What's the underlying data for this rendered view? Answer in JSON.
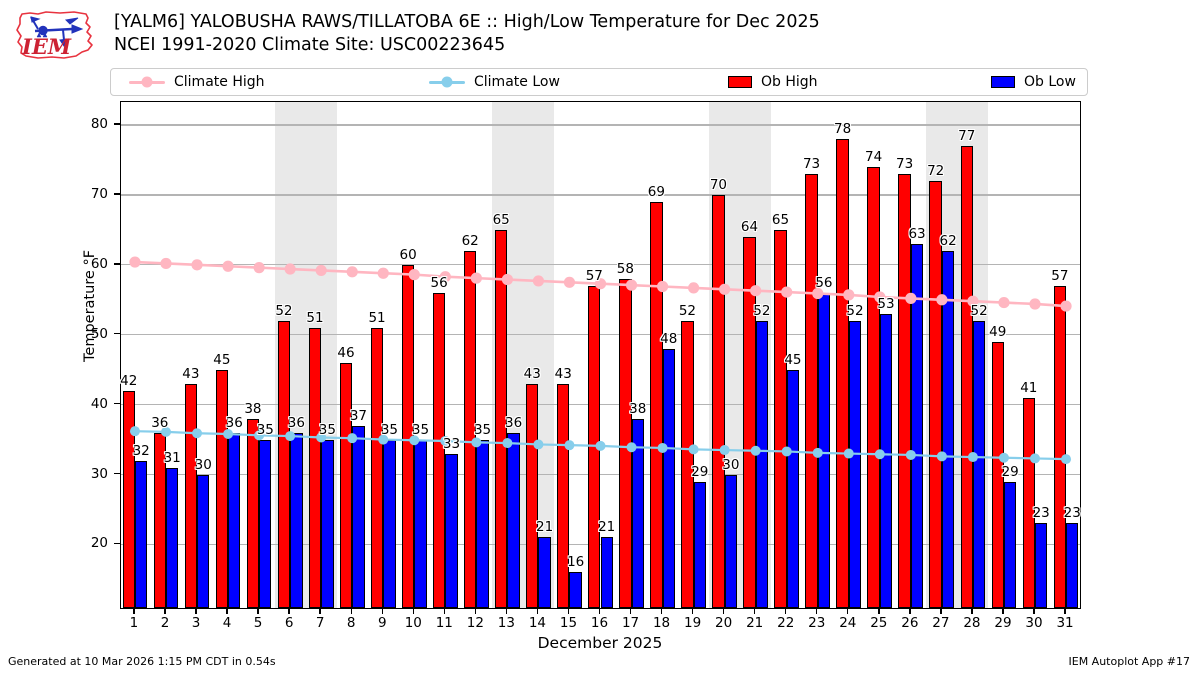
{
  "header": {
    "title_line1": "[YALM6] YALOBUSHA RAWS/TILLATOBA 6E :: High/Low Temperature for Dec 2025",
    "title_line2": "NCEI 1991-2020 Climate Site: USC00223645",
    "logo_text": "IEM"
  },
  "legend": {
    "items": [
      {
        "label": "Climate High",
        "marker": "line-dot",
        "color": "#ffb6c1"
      },
      {
        "label": "Climate Low",
        "marker": "line-dot",
        "color": "#87ceeb"
      },
      {
        "label": "Ob High",
        "marker": "rect",
        "color": "#ff0000"
      },
      {
        "label": "Ob Low",
        "marker": "rect",
        "color": "#0000ff"
      }
    ]
  },
  "chart_data": {
    "type": "bar",
    "title": "[YALM6] YALOBUSHA RAWS/TILLATOBA 6E :: High/Low Temperature for Dec 2025",
    "subtitle": "NCEI 1991-2020 Climate Site: USC00223645",
    "xlabel": "December 2025",
    "ylabel": "Temperature °F",
    "x": [
      1,
      2,
      3,
      4,
      5,
      6,
      7,
      8,
      9,
      10,
      11,
      12,
      13,
      14,
      15,
      16,
      17,
      18,
      19,
      20,
      21,
      22,
      23,
      24,
      25,
      26,
      27,
      28,
      29,
      30,
      31
    ],
    "series": [
      {
        "name": "Ob High",
        "type": "bar",
        "color": "#ff0000",
        "values": [
          42,
          36,
          43,
          45,
          38,
          52,
          51,
          46,
          51,
          60,
          56,
          62,
          65,
          43,
          43,
          57,
          58,
          69,
          52,
          70,
          64,
          65,
          73,
          78,
          74,
          73,
          72,
          77,
          49,
          41,
          57
        ]
      },
      {
        "name": "Ob Low",
        "type": "bar",
        "color": "#0000ff",
        "values": [
          32,
          31,
          30,
          36,
          35,
          36,
          35,
          37,
          35,
          35,
          33,
          35,
          36,
          21,
          16,
          21,
          38,
          48,
          29,
          30,
          52,
          45,
          56,
          52,
          53,
          63,
          62,
          52,
          29,
          23,
          23
        ]
      },
      {
        "name": "Climate High",
        "type": "line",
        "color": "#ffb6c1",
        "values": [
          60.4,
          60.2,
          60.0,
          59.8,
          59.6,
          59.4,
          59.2,
          59.0,
          58.8,
          58.6,
          58.3,
          58.1,
          57.9,
          57.7,
          57.5,
          57.3,
          57.1,
          56.9,
          56.7,
          56.5,
          56.3,
          56.1,
          55.9,
          55.7,
          55.4,
          55.2,
          55.0,
          54.8,
          54.6,
          54.4,
          54.1
        ]
      },
      {
        "name": "Climate Low",
        "type": "line",
        "color": "#87ceeb",
        "values": [
          36.2,
          36.1,
          35.9,
          35.8,
          35.6,
          35.5,
          35.3,
          35.2,
          35.0,
          34.9,
          34.8,
          34.6,
          34.5,
          34.3,
          34.2,
          34.1,
          33.9,
          33.8,
          33.6,
          33.5,
          33.4,
          33.3,
          33.1,
          33.0,
          32.9,
          32.8,
          32.6,
          32.5,
          32.4,
          32.3,
          32.2
        ]
      }
    ],
    "ylim": [
      10.9,
      83.3
    ],
    "xlim": [
      0.55,
      31.45
    ],
    "yticks": [
      20,
      30,
      40,
      50,
      60,
      70,
      80
    ],
    "grid": true,
    "weekend_bands": [
      [
        5.5,
        7.5
      ],
      [
        12.5,
        14.5
      ],
      [
        19.5,
        21.5
      ],
      [
        26.5,
        28.5
      ]
    ],
    "band_color": "#e9e9e9",
    "legend_position": "top"
  },
  "footer": {
    "generated": "Generated at 10 Mar 2026 1:15 PM CDT in 0.54s",
    "app": "IEM Autoplot App #17"
  }
}
